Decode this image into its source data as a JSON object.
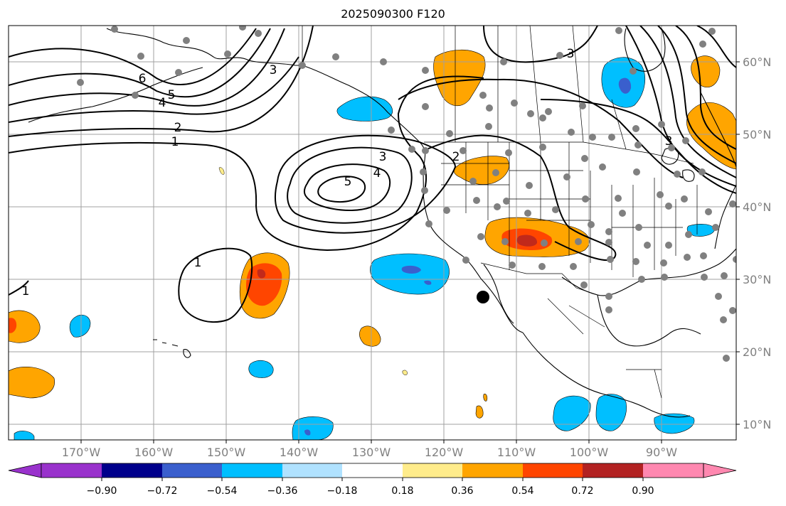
{
  "title": "2025090300 F120",
  "lat_labels": [
    "60°N",
    "50°N",
    "40°N",
    "30°N",
    "20°N",
    "10°N"
  ],
  "lon_labels": [
    "170°W",
    "160°W",
    "150°W",
    "140°W",
    "130°W",
    "120°W",
    "110°W",
    "100°W",
    "90°W"
  ],
  "colorbar": {
    "tick_labels": [
      "−0.90",
      "−0.72",
      "−0.54",
      "−0.36",
      "−0.18",
      "0.18",
      "0.36",
      "0.54",
      "0.72",
      "0.90"
    ],
    "colors": [
      "#9932cc",
      "#00008b",
      "#3a5fcd",
      "#00bfff",
      "#b0e2ff",
      "#ffffff",
      "#ffec8b",
      "#ffa500",
      "#ff4500",
      "#b22222",
      "#ff88b0"
    ]
  },
  "contour_labels": [
    "6",
    "5",
    "4",
    "3",
    "2",
    "1",
    "3",
    "4",
    "5",
    "2",
    "3",
    "1",
    "1",
    "3"
  ],
  "colors": {
    "positive_anomaly": "#ffa500",
    "strong_positive": "#ff4500",
    "negative_anomaly": "#00bfff",
    "strong_negative": "#3a5fcd",
    "station": "#808080",
    "grid": "#a0a0a0"
  }
}
